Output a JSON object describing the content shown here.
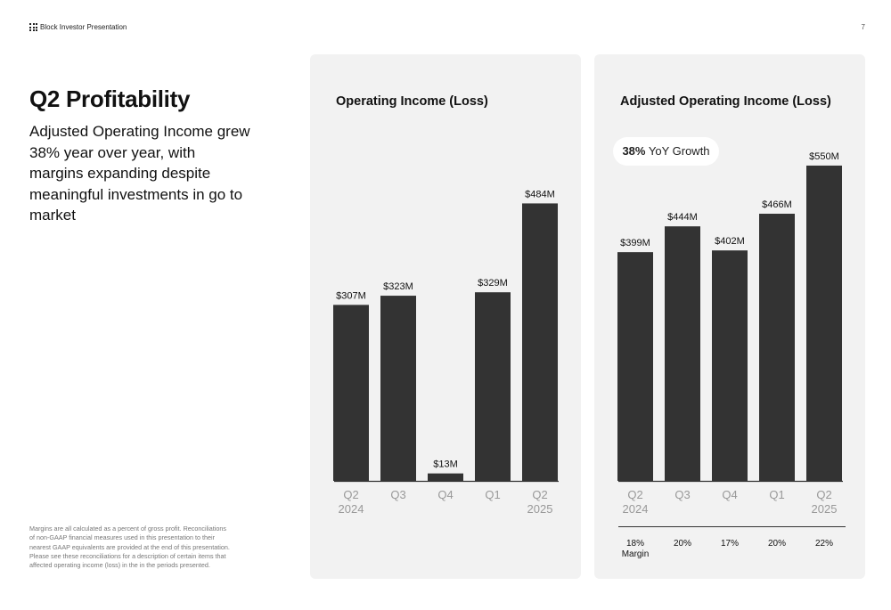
{
  "header": {
    "title": "Block Investor Presentation",
    "page_number": "7"
  },
  "slide": {
    "title": "Q2 Profitability",
    "subtitle": "Adjusted Operating Income grew 38% year over year, with margins expanding despite meaningful investments in go to market",
    "footnote": "Margins are all calculated as a percent of gross profit. Reconciliations of non-GAAP financial measures used in this presentation to their nearest GAAP equivalents are provided at the end of this presentation. Please see these reconciliations for a description of certain items that affected operating income (loss) in the in the periods presented."
  },
  "callout": {
    "value": "38%",
    "text": "YoY Growth"
  },
  "colors": {
    "bar": "#333333",
    "panel": "#f2f2f2",
    "axis": "#333333",
    "tick": "#999999"
  },
  "chart_data": [
    {
      "type": "bar",
      "title": "Operating Income (Loss)",
      "categories": [
        "Q2 2024",
        "Q3",
        "Q4",
        "Q1",
        "Q2 2025"
      ],
      "category_lines": [
        [
          "Q2",
          "2024"
        ],
        [
          "Q3"
        ],
        [
          "Q4"
        ],
        [
          "Q1"
        ],
        [
          "Q2",
          "2025"
        ]
      ],
      "values": [
        307,
        323,
        13,
        329,
        484
      ],
      "data_labels": [
        "$307M",
        "$323M",
        "$13M",
        "$329M",
        "$484M"
      ],
      "unit": "$M",
      "grid": false
    },
    {
      "type": "bar",
      "title": "Adjusted Operating Income (Loss)",
      "categories": [
        "Q2 2024",
        "Q3",
        "Q4",
        "Q1",
        "Q2 2025"
      ],
      "category_lines": [
        [
          "Q2",
          "2024"
        ],
        [
          "Q3"
        ],
        [
          "Q4"
        ],
        [
          "Q1"
        ],
        [
          "Q2",
          "2025"
        ]
      ],
      "values": [
        399,
        444,
        402,
        466,
        550
      ],
      "data_labels": [
        "$399M",
        "$444M",
        "$402M",
        "$466M",
        "$550M"
      ],
      "margins": [
        "18%",
        "20%",
        "17%",
        "20%",
        "22%"
      ],
      "margin_label": "Margin",
      "unit": "$M",
      "grid": false
    }
  ]
}
